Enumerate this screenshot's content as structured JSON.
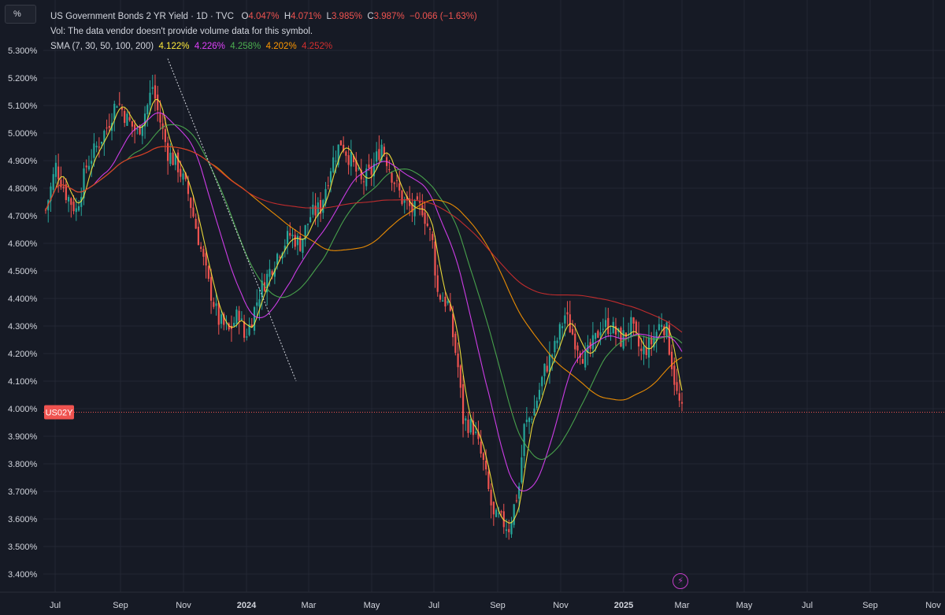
{
  "legend": {
    "title": "US Government Bonds 2 YR Yield · 1D · TVC",
    "ohlc": {
      "o_label": "O",
      "o_value": "4.047%",
      "h_label": "H",
      "h_value": "4.071%",
      "l_label": "L",
      "l_value": "3.985%",
      "c_label": "C",
      "c_value": "3.987%",
      "change": "−0.066 (−1.63%)"
    },
    "vol_text": "Vol: The data vendor doesn't provide volume data for this symbol.",
    "sma_label": "SMA (7, 30, 50, 100, 200)",
    "sma_values": [
      "4.122%",
      "4.226%",
      "4.258%",
      "4.202%",
      "4.252%"
    ]
  },
  "scale_button": "%",
  "price_tag": "US02Y",
  "colors": {
    "background": "#161a25",
    "grid": "#232733",
    "up": "#26a69a",
    "down": "#ef5350",
    "sma7": "#ffeb3b",
    "sma30": "#e040fb",
    "sma50": "#4caf50",
    "sma100": "#ff9800",
    "sma200": "#d32f2f",
    "price_line": "#ef5350",
    "alert_icon": "#c43ec8"
  },
  "chart_data": {
    "type": "candlestick",
    "symbol": "US02Y",
    "ylim": [
      3.35,
      5.35
    ],
    "y_ticks": [
      "5.300%",
      "5.200%",
      "5.100%",
      "5.000%",
      "4.900%",
      "4.800%",
      "4.700%",
      "4.600%",
      "4.500%",
      "4.400%",
      "4.300%",
      "4.200%",
      "4.100%",
      "4.000%",
      "3.900%",
      "3.800%",
      "3.700%",
      "3.600%",
      "3.500%",
      "3.400%"
    ],
    "x_ticks": [
      {
        "label": "Jul",
        "bold": false
      },
      {
        "label": "Sep",
        "bold": false
      },
      {
        "label": "Nov",
        "bold": false
      },
      {
        "label": "2024",
        "bold": true
      },
      {
        "label": "Mar",
        "bold": false
      },
      {
        "label": "May",
        "bold": false
      },
      {
        "label": "Jul",
        "bold": false
      },
      {
        "label": "Sep",
        "bold": false
      },
      {
        "label": "Nov",
        "bold": false
      },
      {
        "label": "2025",
        "bold": true
      },
      {
        "label": "Mar",
        "bold": false
      },
      {
        "label": "May",
        "bold": false
      },
      {
        "label": "Jul",
        "bold": false
      },
      {
        "label": "Sep",
        "bold": false
      },
      {
        "label": "Nov",
        "bold": false
      }
    ],
    "close_path": [
      [
        0,
        4.72
      ],
      [
        4,
        4.88
      ],
      [
        8,
        4.78
      ],
      [
        12,
        4.72
      ],
      [
        16,
        4.88
      ],
      [
        20,
        4.95
      ],
      [
        24,
        5.02
      ],
      [
        28,
        5.12
      ],
      [
        32,
        5.05
      ],
      [
        36,
        5.0
      ],
      [
        40,
        5.1
      ],
      [
        42,
        5.17
      ],
      [
        44,
        5.08
      ],
      [
        48,
        4.93
      ],
      [
        52,
        4.88
      ],
      [
        56,
        4.78
      ],
      [
        60,
        4.62
      ],
      [
        64,
        4.45
      ],
      [
        68,
        4.32
      ],
      [
        72,
        4.28
      ],
      [
        76,
        4.35
      ],
      [
        78,
        4.26
      ],
      [
        80,
        4.3
      ],
      [
        84,
        4.42
      ],
      [
        88,
        4.5
      ],
      [
        92,
        4.58
      ],
      [
        96,
        4.63
      ],
      [
        100,
        4.6
      ],
      [
        104,
        4.7
      ],
      [
        108,
        4.73
      ],
      [
        112,
        4.88
      ],
      [
        116,
        4.97
      ],
      [
        120,
        4.9
      ],
      [
        124,
        4.82
      ],
      [
        128,
        4.86
      ],
      [
        132,
        4.96
      ],
      [
        136,
        4.85
      ],
      [
        140,
        4.76
      ],
      [
        144,
        4.72
      ],
      [
        148,
        4.73
      ],
      [
        152,
        4.6
      ],
      [
        154,
        4.42
      ],
      [
        158,
        4.38
      ],
      [
        162,
        4.15
      ],
      [
        164,
        3.96
      ],
      [
        168,
        3.93
      ],
      [
        172,
        3.8
      ],
      [
        176,
        3.6
      ],
      [
        178,
        3.6
      ],
      [
        182,
        3.57
      ],
      [
        186,
        3.72
      ],
      [
        188,
        3.93
      ],
      [
        192,
        4.0
      ],
      [
        196,
        4.14
      ],
      [
        200,
        4.22
      ],
      [
        204,
        4.34
      ],
      [
        208,
        4.25
      ],
      [
        212,
        4.18
      ],
      [
        216,
        4.25
      ],
      [
        218,
        4.3
      ],
      [
        222,
        4.3
      ],
      [
        226,
        4.25
      ],
      [
        230,
        4.3
      ],
      [
        234,
        4.2
      ],
      [
        238,
        4.24
      ],
      [
        242,
        4.32
      ],
      [
        244,
        4.28
      ],
      [
        248,
        4.05
      ],
      [
        250,
        3.987
      ]
    ],
    "x_range_weeks": [
      -2,
      362
    ],
    "series": [
      {
        "name": "SMA 7",
        "value": "4.122%"
      },
      {
        "name": "SMA 30",
        "value": "4.226%"
      },
      {
        "name": "SMA 50",
        "value": "4.258%"
      },
      {
        "name": "SMA 100",
        "value": "4.202%"
      },
      {
        "name": "SMA 200",
        "value": "4.252%"
      }
    ],
    "last_price": 3.987,
    "trendline": [
      [
        5.27,
        42
      ],
      [
        4.1,
        88
      ]
    ]
  }
}
